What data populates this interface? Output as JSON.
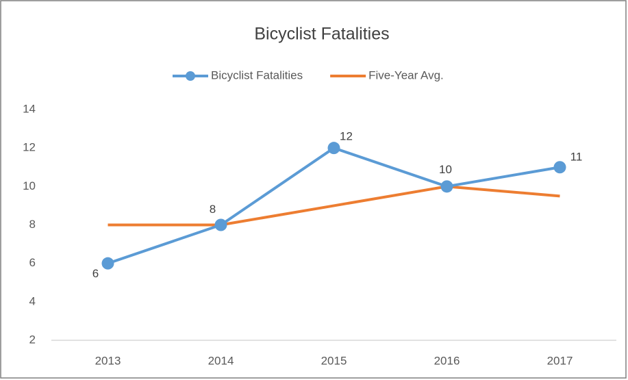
{
  "chart_data": {
    "type": "line",
    "title": "Bicyclist Fatalities",
    "categories": [
      "2013",
      "2014",
      "2015",
      "2016",
      "2017"
    ],
    "series": [
      {
        "name": "Bicyclist Fatalities",
        "color": "#5b9bd5",
        "values": [
          6,
          8,
          12,
          10,
          11
        ],
        "markers": true,
        "data_labels": true
      },
      {
        "name": "Five-Year Avg.",
        "color": "#ed7d31",
        "values": [
          8,
          8,
          9,
          10,
          9.5
        ],
        "markers": false,
        "data_labels": false
      }
    ],
    "ylim": [
      2,
      14
    ],
    "yticks": [
      2,
      4,
      6,
      8,
      10,
      12,
      14
    ],
    "grid": false,
    "legend": "top"
  }
}
